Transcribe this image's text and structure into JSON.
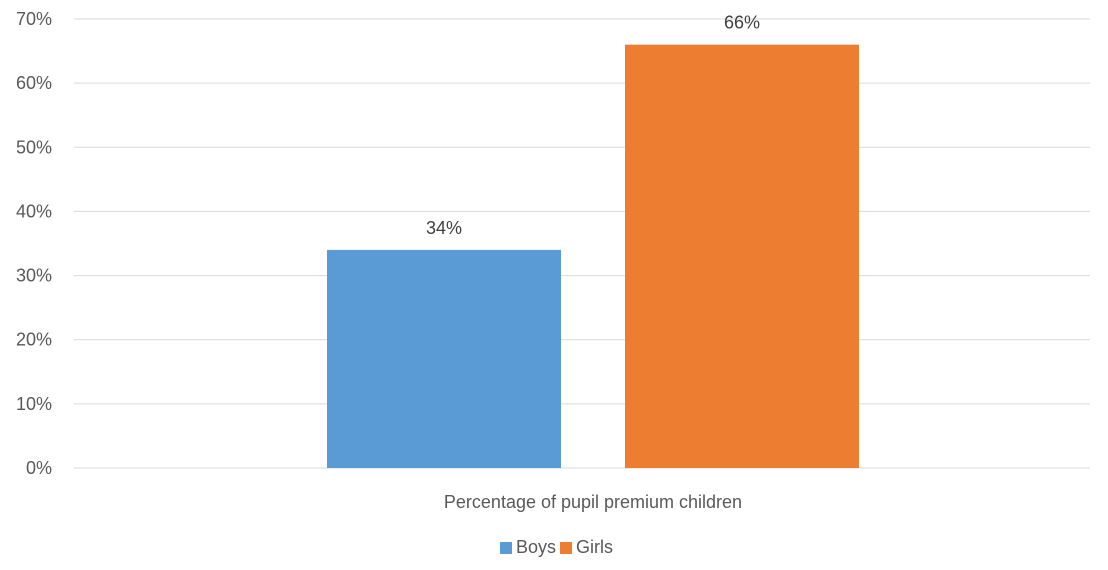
{
  "chart_data": {
    "type": "bar",
    "categories": [
      "Percentage of pupil premium children"
    ],
    "series": [
      {
        "name": "Boys",
        "values": [
          34
        ],
        "color": "#5b9bd5"
      },
      {
        "name": "Girls",
        "values": [
          66
        ],
        "color": "#ed7d31"
      }
    ],
    "data_labels": [
      "34%",
      "66%"
    ],
    "ylim": [
      0,
      70
    ],
    "yticks": [
      0,
      10,
      20,
      30,
      40,
      50,
      60,
      70
    ],
    "ytick_labels": [
      "0%",
      "10%",
      "20%",
      "30%",
      "40%",
      "50%",
      "60%",
      "70%"
    ],
    "value_format": "percent",
    "grid": true,
    "legend_position": "bottom",
    "title": "",
    "xlabel": "",
    "ylabel": ""
  }
}
